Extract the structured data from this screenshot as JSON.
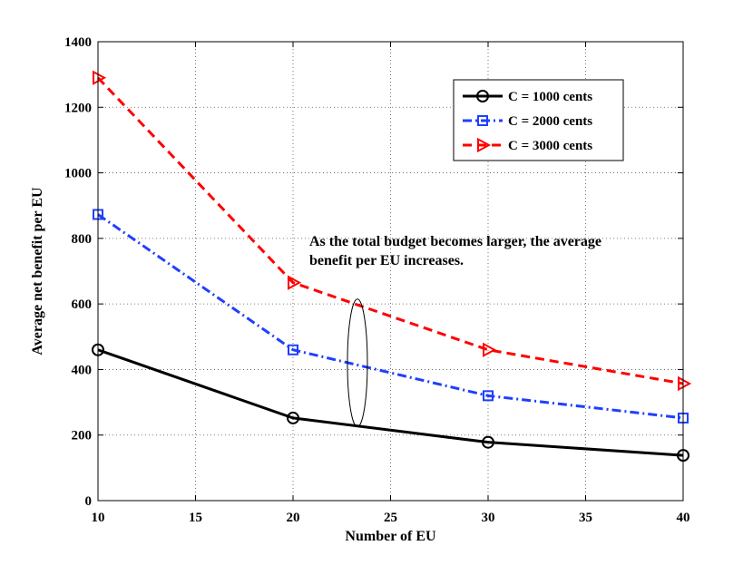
{
  "chart_data": {
    "type": "line",
    "title": "",
    "xlabel": "Number of EU",
    "ylabel": "Average net benefit per EU",
    "xlim": [
      10,
      40
    ],
    "ylim": [
      0,
      1400
    ],
    "xticks": [
      10,
      15,
      20,
      25,
      30,
      35,
      40
    ],
    "yticks": [
      0,
      200,
      400,
      600,
      800,
      1000,
      1200,
      1400
    ],
    "grid": true,
    "legend_position": "top-right",
    "x": [
      10,
      20,
      30,
      40
    ],
    "series": [
      {
        "name": "C = 1000 cents",
        "values": [
          460,
          252,
          178,
          138
        ],
        "color": "#000000",
        "dash": "solid",
        "marker": "circle"
      },
      {
        "name": "C = 2000 cents",
        "values": [
          873,
          460,
          320,
          252
        ],
        "color": "#1f3fff",
        "dash": "dashdot",
        "marker": "square"
      },
      {
        "name": "C = 3000 cents",
        "values": [
          1290,
          665,
          460,
          357
        ],
        "color": "#ff0000",
        "dash": "dashed",
        "marker": "triangle-right"
      }
    ],
    "annotation": {
      "lines": [
        "As the total budget becomes larger, the average",
        "benefit per EU increases."
      ],
      "x": 23.3,
      "y_center": 420,
      "y_half_height": 195
    }
  }
}
